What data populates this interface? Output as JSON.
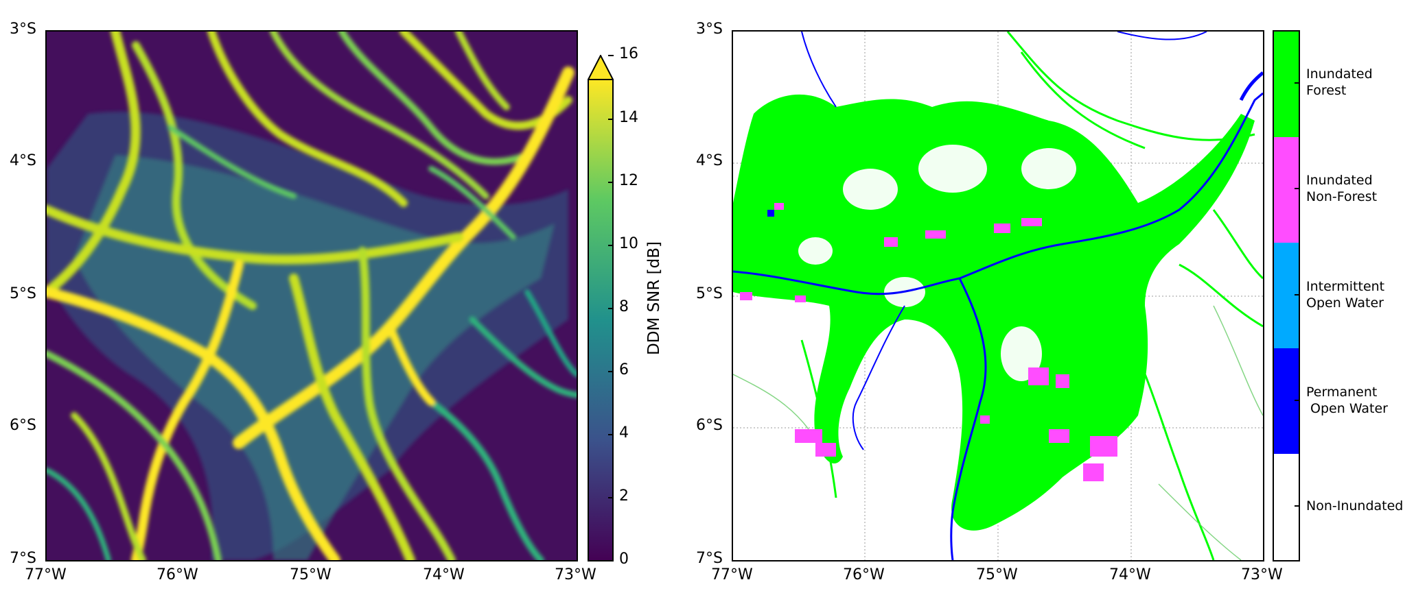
{
  "left_panel": {
    "y_ticks": [
      "3°S",
      "4°S",
      "5°S",
      "6°S",
      "7°S"
    ],
    "x_ticks": [
      "77°W",
      "76°W",
      "75°W",
      "74°W",
      "73°W"
    ],
    "colorbar": {
      "label": "DDM SNR [dB]",
      "ticks": [
        "0",
        "2",
        "4",
        "6",
        "8",
        "10",
        "12",
        "14",
        "16"
      ],
      "min": 0,
      "max": 16,
      "extend": "max",
      "colormap": "viridis",
      "colors": [
        "#440154",
        "#3b528b",
        "#21918c",
        "#5ec962",
        "#fde725"
      ]
    }
  },
  "right_panel": {
    "y_ticks": [
      "3°S",
      "4°S",
      "5°S",
      "6°S",
      "7°S"
    ],
    "x_ticks": [
      "77°W",
      "76°W",
      "75°W",
      "74°W",
      "73°W"
    ],
    "legend": [
      {
        "label": "Inundated\nForest",
        "color": "#00ff00"
      },
      {
        "label": "Inundated\nNon-Forest",
        "color": "#ff4dff"
      },
      {
        "label": "Intermittent\nOpen Water",
        "color": "#00aaff"
      },
      {
        "label": "Permanent\n Open Water",
        "color": "#0000ff"
      },
      {
        "label": "Non-Inundated",
        "color": "#ffffff"
      }
    ]
  }
}
